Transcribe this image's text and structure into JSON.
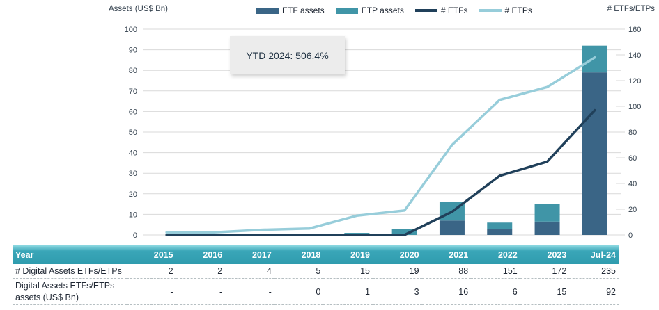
{
  "chart_data": {
    "type": "combo-bar-line",
    "categories": [
      "2015",
      "2016",
      "2017",
      "2018",
      "2019",
      "2020",
      "2021",
      "2022",
      "2023",
      "Jul-24"
    ],
    "bar_series": [
      {
        "name": "ETF assets",
        "axis": "left",
        "color": "#3a6586",
        "values": [
          null,
          null,
          null,
          0,
          0,
          0,
          7,
          2.7,
          6.5,
          79
        ]
      },
      {
        "name": "ETP assets",
        "axis": "left",
        "color": "#4095a7",
        "values": [
          null,
          null,
          null,
          0,
          1,
          3,
          9,
          3.3,
          8.5,
          13
        ]
      }
    ],
    "line_series": [
      {
        "name": "# ETFs",
        "axis": "right",
        "color": "#20405a",
        "values": [
          0,
          0,
          0,
          0,
          0,
          0,
          18,
          46,
          57,
          97
        ]
      },
      {
        "name": "# ETPs",
        "axis": "right",
        "color": "#97cdda",
        "values": [
          2,
          2,
          4,
          5,
          15,
          19,
          70,
          105,
          115,
          138
        ]
      }
    ],
    "left_axis": {
      "title": "Assets (US$ Bn)",
      "min": 0,
      "max": 100,
      "step": 10
    },
    "right_axis": {
      "title": "# ETFs/ETPs",
      "min": 0,
      "max": 160,
      "step": 20
    },
    "grid": true,
    "legend_position": "top-center",
    "annotation": "YTD 2024: 506.4%",
    "grid_color": "#d9d9d9"
  },
  "legend": [
    {
      "label": "ETF assets",
      "type": "bar",
      "color": "#3a6586"
    },
    {
      "label": "ETP assets",
      "type": "bar",
      "color": "#4095a7"
    },
    {
      "label": "# ETFs",
      "type": "line",
      "color": "#20405a"
    },
    {
      "label": "# ETPs",
      "type": "line",
      "color": "#97cdda"
    }
  ],
  "table": {
    "header": [
      "Year",
      "2015",
      "2016",
      "2017",
      "2018",
      "2019",
      "2020",
      "2021",
      "2022",
      "2023",
      "Jul-24"
    ],
    "rows": [
      {
        "label": "# Digital Assets ETFs/ETPs",
        "values": [
          "2",
          "2",
          "4",
          "5",
          "15",
          "19",
          "88",
          "151",
          "172",
          "235"
        ]
      },
      {
        "label": "Digital Assets ETFs/ETPs assets (US$ Bn)",
        "values": [
          "-",
          "-",
          "-",
          "0",
          "1",
          "3",
          "16",
          "6",
          "15",
          "92"
        ]
      }
    ]
  }
}
